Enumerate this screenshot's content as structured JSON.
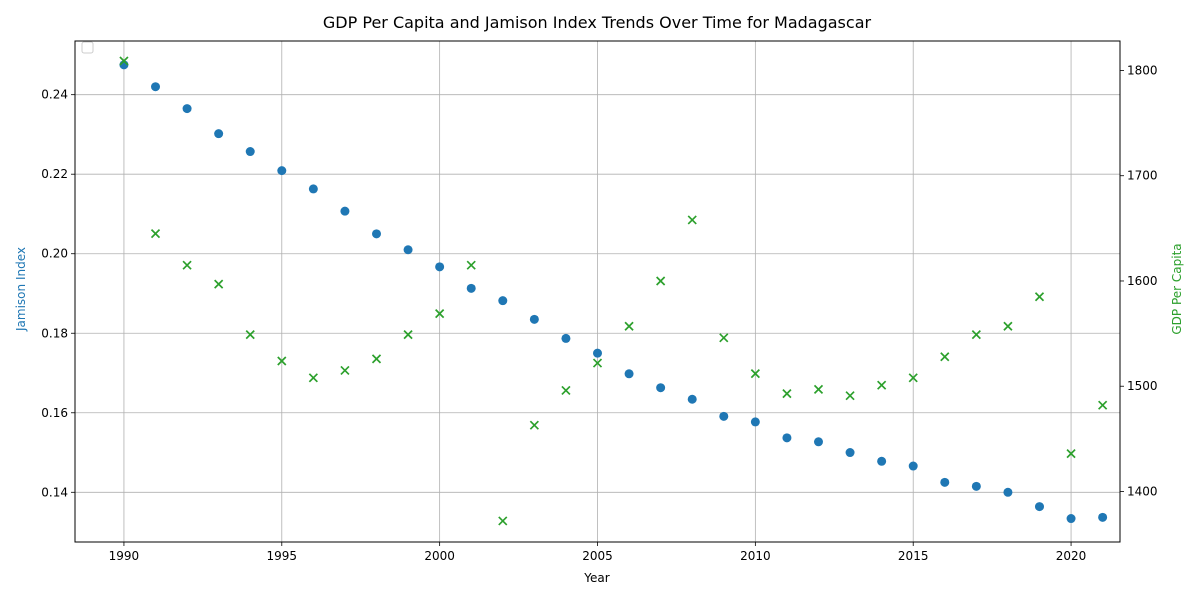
{
  "chart_data": {
    "type": "scatter",
    "title": "GDP Per Capita and Jamison Index Trends Over Time for Madagascar",
    "xlabel": "Year",
    "ylabel_left": "Jamison Index",
    "ylabel_right": "GDP Per Capita",
    "xlim": [
      1988.45,
      1992.55
    ],
    "xticks": [
      1990,
      1995,
      2000,
      2005,
      2010,
      2015,
      2020
    ],
    "ylim_left": [
      0.1275,
      0.2535
    ],
    "yticks_left": [
      0.14,
      0.16,
      0.18,
      0.2,
      0.22,
      0.24
    ],
    "ylim_right": [
      1352,
      1828
    ],
    "yticks_right": [
      1400,
      1500,
      1600,
      1700,
      1800
    ],
    "grid": true,
    "legend": "upper-left (empty)",
    "colors": {
      "jamison": "#1f77b4",
      "gdp": "#2ca02c"
    },
    "years": [
      1990,
      1991,
      1992,
      1993,
      1994,
      1995,
      1996,
      1997,
      1998,
      1999,
      2000,
      2001,
      2002,
      2003,
      2004,
      2005,
      2006,
      2007,
      2008,
      2009,
      2010,
      2011,
      2012,
      2013,
      2014,
      2015,
      2016,
      2017,
      2018,
      2019,
      2020,
      2021
    ],
    "series": [
      {
        "axis": "left",
        "marker": "circle",
        "values": [
          0.2475,
          0.242,
          0.2365,
          0.2302,
          0.2257,
          0.2209,
          0.2163,
          0.2107,
          0.205,
          0.201,
          0.1967,
          0.1913,
          0.1882,
          0.1835,
          0.1787,
          0.175,
          0.1698,
          0.1663,
          0.1634,
          0.1591,
          0.1577,
          0.1537,
          0.1527,
          0.15,
          0.1478,
          0.1466,
          0.1425,
          0.1415,
          0.14,
          0.1364,
          0.1334,
          0.1337
        ]
      },
      {
        "axis": "right",
        "marker": "x",
        "values": [
          1809,
          1645,
          1615,
          1597,
          1549,
          1524,
          1508,
          1515,
          1526,
          1549,
          1569,
          1615,
          1372,
          1463,
          1496,
          1522,
          1557,
          1600,
          1658,
          1546,
          1512,
          1493,
          1497,
          1491,
          1501,
          1508,
          1528,
          1549,
          1557,
          1585,
          1436,
          1482
        ]
      }
    ]
  }
}
